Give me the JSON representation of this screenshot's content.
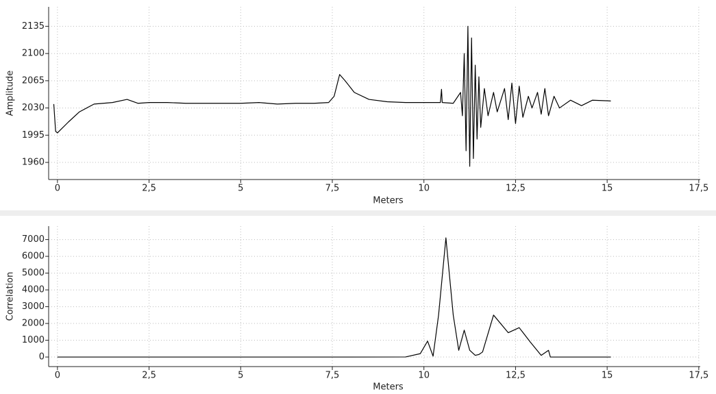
{
  "chart_data": [
    {
      "type": "line",
      "y_label": "Amplitude",
      "x_label": "Meters",
      "grid": true,
      "xlim": [
        -0.24,
        17.54
      ],
      "ylim": [
        1938,
        2160
      ],
      "xticks": [
        0,
        {
          "value": 2.5,
          "label": "2,5"
        },
        5,
        {
          "value": 7.5,
          "label": "7,5"
        },
        10,
        {
          "value": 12.5,
          "label": "12,5"
        },
        15,
        {
          "value": 17.5,
          "label": "17,5"
        }
      ],
      "yticks": [
        1960,
        1995,
        2030,
        2065,
        2100,
        2135
      ],
      "x": [
        -0.1,
        -0.05,
        0,
        0.3,
        0.6,
        1.0,
        1.5,
        1.9,
        2.2,
        2.5,
        3.0,
        3.5,
        4.0,
        4.5,
        5.0,
        5.5,
        6.0,
        6.5,
        7.0,
        7.4,
        7.55,
        7.7,
        7.85,
        8.1,
        8.5,
        9.0,
        9.5,
        10.0,
        10.45,
        10.48,
        10.5,
        10.8,
        11.0,
        11.05,
        11.1,
        11.15,
        11.2,
        11.25,
        11.3,
        11.35,
        11.4,
        11.45,
        11.5,
        11.55,
        11.65,
        11.75,
        11.9,
        12.0,
        12.2,
        12.3,
        12.4,
        12.5,
        12.6,
        12.7,
        12.85,
        12.95,
        13.1,
        13.2,
        13.3,
        13.4,
        13.55,
        13.7,
        14.0,
        14.3,
        14.6,
        15.1
      ],
      "series": [
        {
          "color": "#000000",
          "values": [
            2035,
            2000,
            1998,
            2012,
            2025,
            2035,
            2037,
            2041,
            2036,
            2037,
            2037,
            2036,
            2036,
            2036,
            2036,
            2037,
            2035,
            2036,
            2036,
            2037,
            2045,
            2073,
            2065,
            2050,
            2041,
            2038,
            2037,
            2037,
            2037,
            2054,
            2037,
            2036,
            2050,
            2020,
            2100,
            1975,
            2135,
            1955,
            2120,
            1965,
            2085,
            1990,
            2070,
            2005,
            2055,
            2020,
            2050,
            2025,
            2055,
            2015,
            2062,
            2010,
            2058,
            2018,
            2045,
            2030,
            2050,
            2022,
            2055,
            2020,
            2045,
            2030,
            2040,
            2033,
            2040,
            2039
          ]
        }
      ]
    },
    {
      "type": "line",
      "y_label": "Correlation",
      "x_label": "Meters",
      "grid": true,
      "xlim": [
        -0.24,
        17.54
      ],
      "ylim": [
        -570,
        7800
      ],
      "xticks": [
        0,
        {
          "value": 2.5,
          "label": "2,5"
        },
        5,
        {
          "value": 7.5,
          "label": "7,5"
        },
        10,
        {
          "value": 12.5,
          "label": "12,5"
        },
        15,
        {
          "value": 17.5,
          "label": "17,5"
        }
      ],
      "yticks": [
        0,
        1000,
        2000,
        3000,
        4000,
        5000,
        6000,
        7000
      ],
      "x": [
        0,
        2,
        5,
        8,
        9.5,
        9.9,
        10.1,
        10.25,
        10.4,
        10.6,
        10.8,
        10.95,
        11.1,
        11.25,
        11.4,
        11.5,
        11.6,
        11.9,
        12.3,
        12.6,
        12.9,
        13.2,
        13.4,
        13.45,
        15.1
      ],
      "series": [
        {
          "color": "#000000",
          "values": [
            0,
            0,
            0,
            0,
            5,
            200,
            950,
            50,
            2500,
            7100,
            2500,
            400,
            1600,
            400,
            100,
            150,
            300,
            2500,
            1450,
            1750,
            900,
            100,
            400,
            0,
            0
          ]
        }
      ]
    }
  ]
}
